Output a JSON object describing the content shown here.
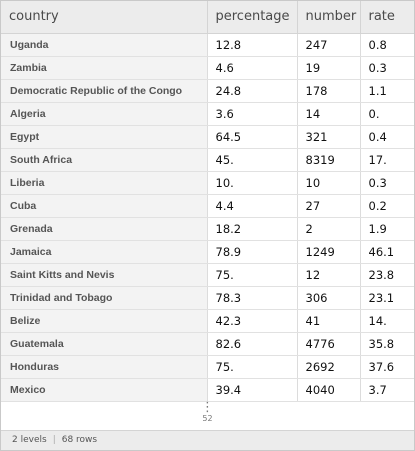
{
  "table": {
    "columns": [
      "country",
      "percentage",
      "number",
      "rate"
    ],
    "rows": [
      [
        "Uganda",
        "12.8",
        "247",
        "0.8"
      ],
      [
        "Zambia",
        "4.6",
        "19",
        "0.3"
      ],
      [
        "Democratic Republic of the Congo",
        "24.8",
        "178",
        "1.1"
      ],
      [
        "Algeria",
        "3.6",
        "14",
        "0."
      ],
      [
        "Egypt",
        "64.5",
        "321",
        "0.4"
      ],
      [
        "South Africa",
        "45.",
        "8319",
        "17."
      ],
      [
        "Liberia",
        "10.",
        "10",
        "0.3"
      ],
      [
        "Cuba",
        "4.4",
        "27",
        "0.2"
      ],
      [
        "Grenada",
        "18.2",
        "2",
        "1.9"
      ],
      [
        "Jamaica",
        "78.9",
        "1249",
        "46.1"
      ],
      [
        "Saint Kitts and Nevis",
        "75.",
        "12",
        "23.8"
      ],
      [
        "Trinidad and Tobago",
        "78.3",
        "306",
        "23.1"
      ],
      [
        "Belize",
        "42.3",
        "41",
        "14."
      ],
      [
        "Guatemala",
        "82.6",
        "4776",
        "35.8"
      ],
      [
        "Honduras",
        "75.",
        "2692",
        "37.6"
      ],
      [
        "Mexico",
        "39.4",
        "4040",
        "3.7"
      ]
    ]
  },
  "more": {
    "dots": "⋮",
    "count": "52"
  },
  "footer": {
    "levels": "2 levels",
    "rows": "68 rows",
    "separator": "|"
  }
}
